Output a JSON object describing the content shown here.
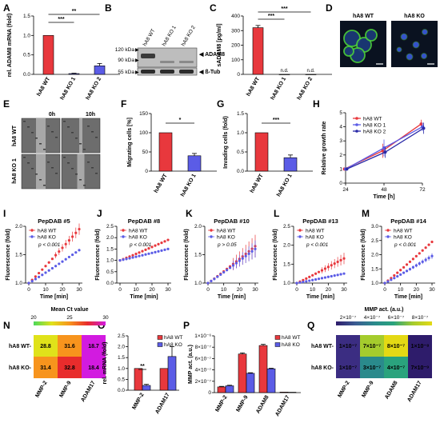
{
  "panel_labels": [
    "A",
    "B",
    "C",
    "D",
    "E",
    "F",
    "G",
    "H",
    "I",
    "J",
    "K",
    "L",
    "M",
    "N",
    "O",
    "P",
    "Q"
  ],
  "colors": {
    "wt": "#e8383d",
    "ko": "#5b5ce6",
    "ko2": "#2b2ba8"
  },
  "western_blot": {
    "lanes": [
      "hA8 WT",
      "hA8 KO 1",
      "hA8 KO 2"
    ],
    "markers": [
      "120 kDa",
      "90 kDa",
      "55 kDa"
    ],
    "bands": [
      "ADAM8",
      "ß-Tub"
    ]
  },
  "microscopy_d": {
    "labels": [
      "hA8 WT",
      "hA8 KO"
    ]
  },
  "scratch_e": {
    "times": [
      "0h",
      "10h"
    ],
    "rows": [
      "hA8 WT",
      "hA8 KO 1"
    ]
  },
  "chart_data": [
    {
      "panel": "A",
      "type": "bar",
      "categories": [
        "hA8 WT",
        "hA8 KO 1",
        "hA8 KO 2"
      ],
      "values": [
        1.0,
        0.02,
        0.22
      ],
      "errors": [
        0,
        0.01,
        0.06
      ],
      "ylabel": "rel. ADAM8 mRNA (fold)",
      "ylim": [
        0,
        1.5
      ],
      "yticks": [
        "0.0",
        "0.5",
        "1.0",
        "1.5"
      ],
      "significance": [
        "***",
        "**"
      ]
    },
    {
      "panel": "C",
      "type": "bar",
      "categories": [
        "hA8 WT",
        "hA8 KO 1",
        "hA8 KO 2"
      ],
      "values": [
        320,
        0,
        0
      ],
      "errors": [
        15,
        0,
        0
      ],
      "value_labels": [
        "",
        "n.d.",
        "n.d."
      ],
      "ylabel": "sADAM8 [pg/ml]",
      "ylim": [
        0,
        400
      ],
      "yticks": [
        "0",
        "100",
        "200",
        "300",
        "400"
      ],
      "significance": [
        "***",
        "***"
      ]
    },
    {
      "panel": "F",
      "type": "bar",
      "categories": [
        "hA8 WT",
        "hA8 KO 1"
      ],
      "values": [
        100,
        40
      ],
      "errors": [
        0,
        6
      ],
      "ylabel": "Migrating cells [%]",
      "ylim": [
        0,
        150
      ],
      "yticks": [
        "0",
        "50",
        "100",
        "150"
      ],
      "significance": [
        "*"
      ]
    },
    {
      "panel": "G",
      "type": "bar",
      "categories": [
        "hA8 WT",
        "hA8 KO 1"
      ],
      "values": [
        1.0,
        0.35
      ],
      "errors": [
        0,
        0.07
      ],
      "ylabel": "Invading cells (fold)",
      "ylim": [
        0,
        1.5
      ],
      "yticks": [
        "0.0",
        "0.5",
        "1.0",
        "1.5"
      ],
      "significance": [
        "***"
      ]
    },
    {
      "panel": "H",
      "type": "line",
      "x": [
        24,
        48,
        72
      ],
      "xlabel": "Time [h]",
      "ylabel": "Relative growth rate",
      "ylim": [
        0,
        5
      ],
      "yticks": [
        "0",
        "1",
        "2",
        "3",
        "4",
        "5"
      ],
      "series": [
        {
          "name": "hA8 WT",
          "values": [
            1.0,
            2.3,
            4.2
          ],
          "errors": [
            0,
            0.5,
            0.3
          ]
        },
        {
          "name": "hA8 KO 1",
          "values": [
            1.0,
            2.5,
            4.0
          ],
          "errors": [
            0,
            0.6,
            0.3
          ]
        },
        {
          "name": "hA8 KO 2",
          "values": [
            1.0,
            2.2,
            3.9
          ],
          "errors": [
            0,
            0.4,
            0.4
          ]
        }
      ]
    },
    {
      "panel": "I",
      "type": "scatter",
      "title": "PepDAB #5",
      "pval": "p < 0.001",
      "xlabel": "Time [min]",
      "ylabel": "Fluorescence (fold)",
      "ylim": [
        0.8,
        2.2
      ],
      "yticks": [
        "1.0",
        "1.5",
        "2.0"
      ],
      "xticks": [
        "0",
        "10",
        "20",
        "30"
      ],
      "series": [
        {
          "name": "hA8 WT",
          "end": 1.95,
          "err": 0.1
        },
        {
          "name": "hA8 KO",
          "end": 1.58,
          "err": 0.04
        }
      ]
    },
    {
      "panel": "J",
      "type": "scatter",
      "title": "PepDAB #8",
      "pval": "p < 0.001",
      "xlabel": "Time [min]",
      "ylabel": "Fluorescence (fold)",
      "ylim": [
        0,
        2.5
      ],
      "yticks": [
        "0.0",
        "0.5",
        "1.0",
        "1.5",
        "2.0",
        "2.5"
      ],
      "xticks": [
        "0",
        "10",
        "20",
        "30"
      ],
      "series": [
        {
          "name": "hA8 WT",
          "end": 1.9,
          "err": 0.05
        },
        {
          "name": "hA8 KO",
          "end": 1.5,
          "err": 0.04
        }
      ]
    },
    {
      "panel": "K",
      "type": "scatter",
      "title": "PepDAB #10",
      "pval": "p > 0.05",
      "xlabel": "Time [min]",
      "ylabel": "Fluorescence (fold)",
      "ylim": [
        0.8,
        2.0
      ],
      "yticks": [
        "1.0",
        "1.5",
        "2.0"
      ],
      "xticks": [
        "0",
        "10",
        "20",
        "30"
      ],
      "series": [
        {
          "name": "hA8 WT",
          "end": 1.65,
          "err": 0.2
        },
        {
          "name": "hA8 KO",
          "end": 1.6,
          "err": 0.15
        }
      ]
    },
    {
      "panel": "L",
      "type": "scatter",
      "title": "PepDAB #13",
      "pval": "p < 0.001",
      "xlabel": "Time [min]",
      "ylabel": "Fluorescence (fold)",
      "ylim": [
        0.8,
        2.5
      ],
      "yticks": [
        "1.0",
        "1.5",
        "2.0",
        "2.5"
      ],
      "xticks": [
        "0",
        "10",
        "20",
        "30"
      ],
      "series": [
        {
          "name": "hA8 WT",
          "end": 1.65,
          "err": 0.15
        },
        {
          "name": "hA8 KO",
          "end": 1.25,
          "err": 0.04
        }
      ]
    },
    {
      "panel": "M",
      "type": "scatter",
      "title": "PepDAB #14",
      "pval": "p < 0.001",
      "xlabel": "Time [min]",
      "ylabel": "Fluorescence (fold)",
      "ylim": [
        0.5,
        3.0
      ],
      "yticks": [
        "1.0",
        "1.5",
        "2.0",
        "2.5",
        "3.0"
      ],
      "xticks": [
        "0",
        "10",
        "20",
        "30"
      ],
      "series": [
        {
          "name": "hA8 WT",
          "end": 2.45,
          "err": 0.05
        },
        {
          "name": "hA8 KO",
          "end": 1.95,
          "err": 0.1
        }
      ]
    },
    {
      "panel": "N",
      "type": "heatmap",
      "title": "Mean Ct value",
      "scale_ticks": [
        "20",
        "25",
        "30"
      ],
      "rows": [
        "hA8 WT",
        "hA8 KO"
      ],
      "cols": [
        "MMP-2",
        "MMP-9",
        "ADAM17"
      ],
      "values": [
        [
          "28.8",
          "31.6",
          "18.7"
        ],
        [
          "31.4",
          "32.8",
          "18.4"
        ]
      ],
      "colors": [
        [
          "#e0e21a",
          "#f7941d",
          "#d21be0"
        ],
        [
          "#f7941d",
          "#e82c2c",
          "#d21be0"
        ]
      ]
    },
    {
      "panel": "O",
      "type": "bar",
      "categories": [
        "MMP-2",
        "ADAM17"
      ],
      "series": [
        {
          "name": "hA8 WT",
          "values": [
            1.0,
            1.0
          ],
          "errors": [
            0,
            0
          ]
        },
        {
          "name": "hA8 KO",
          "values": [
            0.22,
            1.55
          ],
          "errors": [
            0.05,
            0.45
          ]
        }
      ],
      "ylabel": "rel. mRNA (fold)",
      "ylim": [
        0,
        2.5
      ],
      "yticks": [
        "0.0",
        "0.5",
        "1.0",
        "1.5",
        "2.0",
        "2.5"
      ],
      "significance": [
        "**"
      ]
    },
    {
      "panel": "P",
      "type": "bar",
      "categories": [
        "MMP-2",
        "MMP-9",
        "ADAM8",
        "ADAM17"
      ],
      "series": [
        {
          "name": "hA8 WT",
          "values": [
            1e-07,
            6.8e-07,
            8.3e-07,
            1e-08
          ],
          "errors": [
            1e-08,
            2e-08,
            2e-08,
            0
          ]
        },
        {
          "name": "hA8 KO",
          "values": [
            1.2e-07,
            3.4e-07,
            4.2e-07,
            7e-09
          ],
          "errors": [
            1e-08,
            1e-08,
            1e-08,
            0
          ]
        }
      ],
      "ylabel": "MMP act. (a.u.)",
      "ylim": [
        0,
        1e-06
      ],
      "yticks": [
        "0",
        "2×10⁻⁷",
        "4×10⁻⁷",
        "6×10⁻⁷",
        "8×10⁻⁷",
        "1×10⁻⁶"
      ]
    },
    {
      "panel": "Q",
      "type": "heatmap",
      "title": "MMP act. (a.u.)",
      "scale_ticks": [
        "2×10⁻⁷",
        "4×10⁻⁷",
        "6×10⁻⁷",
        "8×10⁻⁷"
      ],
      "rows": [
        "hA8 WT",
        "hA8 KO"
      ],
      "cols": [
        "MMP-2",
        "MMP-9",
        "ADAM8",
        "ADAM17"
      ],
      "values": [
        [
          "1×10⁻⁷",
          "7×10⁻⁷",
          "8×10⁻⁷",
          "1×10⁻⁸"
        ],
        [
          "1×10⁻⁷",
          "3×10⁻⁷",
          "4×10⁻⁷",
          "7×10⁻⁹"
        ]
      ],
      "colors": [
        [
          "#3b2d82",
          "#a5cc2d",
          "#e4d914",
          "#2e1c6b"
        ],
        [
          "#3b2d82",
          "#2a8a8c",
          "#2aa37d",
          "#2e1c6b"
        ]
      ]
    }
  ]
}
